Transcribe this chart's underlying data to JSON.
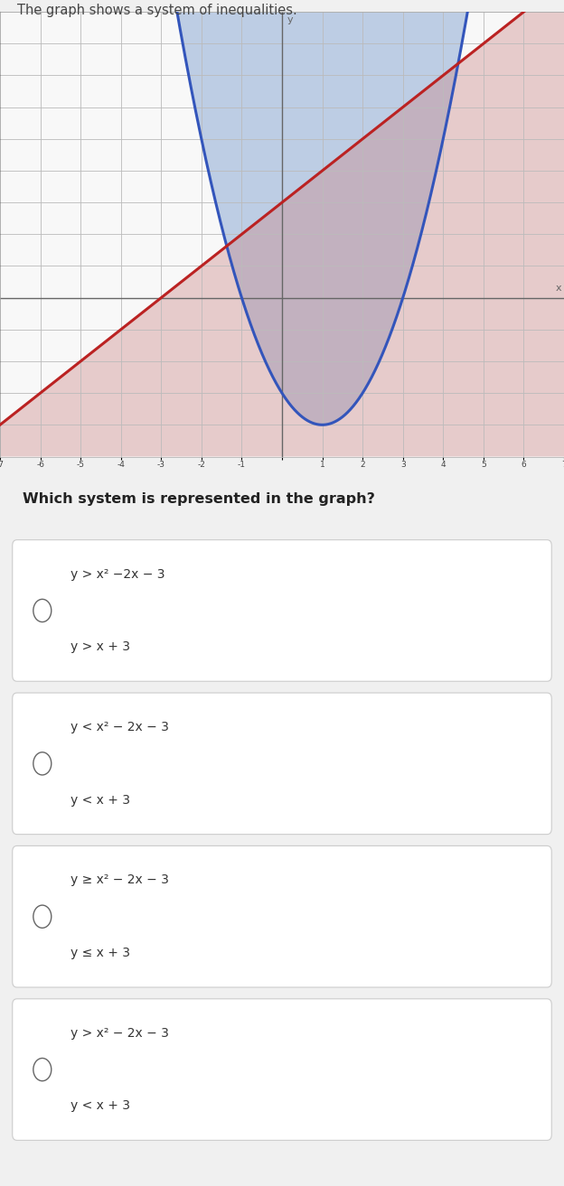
{
  "title": "The graph shows a system of inequalities.",
  "question": "Which system is represented in the graph?",
  "options_line1": [
    "y > x² −2x − 3",
    "y < x² − 2x − 3",
    "y ≥ x² − 2x − 3",
    "y > x² − 2x − 3"
  ],
  "options_line2": [
    "y > x + 3",
    "y < x + 3",
    "y ≤ x + 3",
    "y < x + 3"
  ],
  "graph_xlim": [
    -7,
    7
  ],
  "graph_ylim": [
    -5,
    9
  ],
  "parabola_color": "#3355BB",
  "line_color": "#BB2222",
  "shade_above_parabola_color": "#7799CC",
  "shade_below_line_color": "#CC8888",
  "background_graph_left": "#E8E8E8",
  "background_graph_right": "#F5F5F5",
  "background_page": "#F0F0F0",
  "grid_color": "#BBBBBB",
  "axis_color": "#666666",
  "tick_label_color": "#444444",
  "option_border_color": "#CCCCCC",
  "option_bg_color": "#FFFFFF",
  "title_color": "#444444",
  "question_color": "#222222",
  "option_text_color": "#333333",
  "graph_alpha_blue": 0.45,
  "graph_alpha_pink": 0.4
}
